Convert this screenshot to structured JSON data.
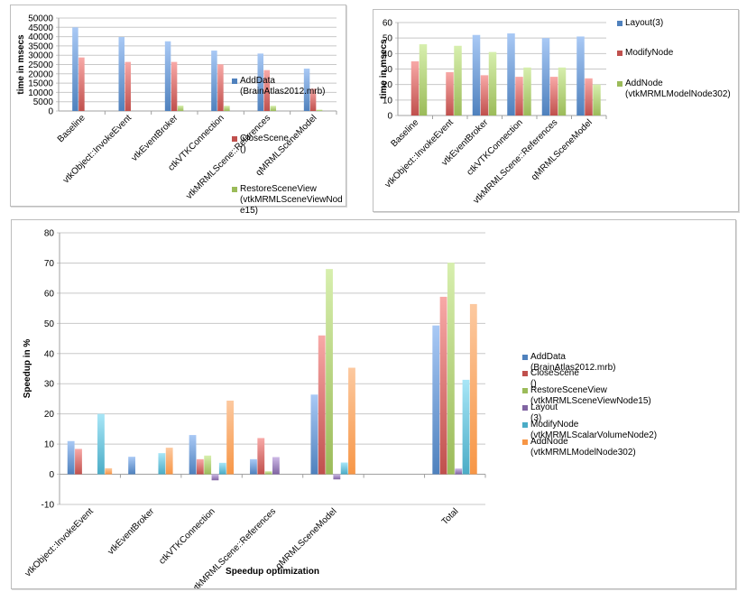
{
  "chart_data": [
    {
      "id": "chart1",
      "type": "bar",
      "title": "",
      "xlabel": "",
      "ylabel": "time in msecs",
      "ylim": [
        0,
        50000
      ],
      "yticks": [
        0,
        5000,
        10000,
        15000,
        20000,
        25000,
        30000,
        35000,
        40000,
        45000,
        50000
      ],
      "grid": true,
      "legend_position": "right",
      "categories": [
        "Baseline",
        "vtkObject::InvokeEvent",
        "vtkEventBroker",
        "ctkVTKConnection",
        "vtkMRMLScene::References",
        "qMRMLSceneModel"
      ],
      "series": [
        {
          "name": "AddData (BrainAtlas2012.mrb)",
          "legend_label": "AddData\n(BrainAtlas2012.mrb)",
          "color": "#4f81bd",
          "color_light": "#a9c9f5",
          "values": [
            45000,
            39800,
            37500,
            32500,
            30900,
            22800
          ]
        },
        {
          "name": "CloseScene ()",
          "legend_label": "CloseScene ()",
          "color": "#c0504d",
          "color_light": "#f8a9a7",
          "values": [
            28800,
            26400,
            26400,
            25100,
            22000,
            12000
          ]
        },
        {
          "name": "RestoreSceneView (vtkMRMLSceneViewNode15)",
          "legend_label": "RestoreSceneView\n(vtkMRMLSceneViewNod\ne15)",
          "color": "#9bbb59",
          "color_light": "#d7efae",
          "values": [
            0,
            0,
            2900,
            2800,
            2800,
            700
          ]
        }
      ]
    },
    {
      "id": "chart2",
      "type": "bar",
      "title": "",
      "xlabel": "",
      "ylabel": "time in msecs",
      "ylim": [
        0,
        60
      ],
      "yticks": [
        0,
        10,
        20,
        30,
        40,
        50,
        60
      ],
      "grid": true,
      "legend_position": "right",
      "categories": [
        "Baseline",
        "vtkObject::InvokeEvent",
        "vtkEventBroker",
        "ctkVTKConnection",
        "vtkMRMLScene::References",
        "qMRMLSceneModel"
      ],
      "series": [
        {
          "name": "Layout(3)",
          "legend_label": "Layout(3)",
          "color": "#4f81bd",
          "color_light": "#a9c9f5",
          "values": [
            0,
            0,
            52,
            53,
            50,
            51
          ]
        },
        {
          "name": "ModifyNode",
          "legend_label": "ModifyNode",
          "color": "#c0504d",
          "color_light": "#f8a9a7",
          "values": [
            35,
            28,
            26,
            25,
            25,
            24
          ]
        },
        {
          "name": "AddNode (vtkMRMLModelNode302)",
          "legend_label": "AddNode\n(vtkMRMLModelNode302)",
          "color": "#9bbb59",
          "color_light": "#d7efae",
          "values": [
            46,
            45,
            41,
            31,
            31,
            20
          ]
        }
      ]
    },
    {
      "id": "chart3",
      "type": "bar",
      "title": "",
      "xlabel": "Speedup optimization",
      "ylabel": "Speedup in %",
      "ylim": [
        -10,
        80
      ],
      "yticks": [
        -10,
        0,
        10,
        20,
        30,
        40,
        50,
        60,
        70,
        80
      ],
      "grid": true,
      "legend_position": "right",
      "categories": [
        "vtkObject::InvokeEvent",
        "vtkEventBroker",
        "ctkVTKConnection",
        "vtkMRMLScene::References",
        "qMRMLSceneModel",
        "",
        "Total"
      ],
      "series": [
        {
          "name": "AddData (BrainAtlas2012.mrb)",
          "legend_label": "AddData (BrainAtlas2012.mrb)",
          "color": "#4f81bd",
          "color_light": "#a9c9f5",
          "values": [
            11,
            5.8,
            13,
            5,
            26.4,
            null,
            49.3
          ]
        },
        {
          "name": "CloseScene ()",
          "legend_label": "CloseScene ()",
          "color": "#c0504d",
          "color_light": "#f8a9a7",
          "values": [
            8.4,
            0,
            5,
            12,
            46,
            null,
            58.8
          ]
        },
        {
          "name": "RestoreSceneView (vtkMRMLSceneViewNode15)",
          "legend_label": "RestoreSceneView (vtkMRMLSceneViewNode15)",
          "color": "#9bbb59",
          "color_light": "#d7efae",
          "values": [
            0,
            0,
            6.2,
            1,
            68,
            null,
            70.1
          ]
        },
        {
          "name": "Layout (3)",
          "legend_label": "Layout (3)",
          "color": "#8064a2",
          "color_light": "#cdb9e6",
          "values": [
            0,
            0,
            -2,
            5.7,
            -1.7,
            null,
            1.9
          ]
        },
        {
          "name": "ModifyNode (vtkMRMLScalarVolumeNode2)",
          "legend_label": "ModifyNode (vtkMRMLScalarVolumeNode2)",
          "color": "#4bacc6",
          "color_light": "#a8e6f7",
          "values": [
            20,
            7,
            3.8,
            0,
            3.9,
            null,
            31.3
          ]
        },
        {
          "name": "AddNode (vtkMRMLModelNode302)",
          "legend_label": "AddNode (vtkMRMLModelNode302)",
          "color": "#f79646",
          "color_light": "#fcc9a0",
          "values": [
            2,
            8.8,
            24.4,
            0,
            35.3,
            null,
            56.4
          ]
        }
      ]
    }
  ]
}
